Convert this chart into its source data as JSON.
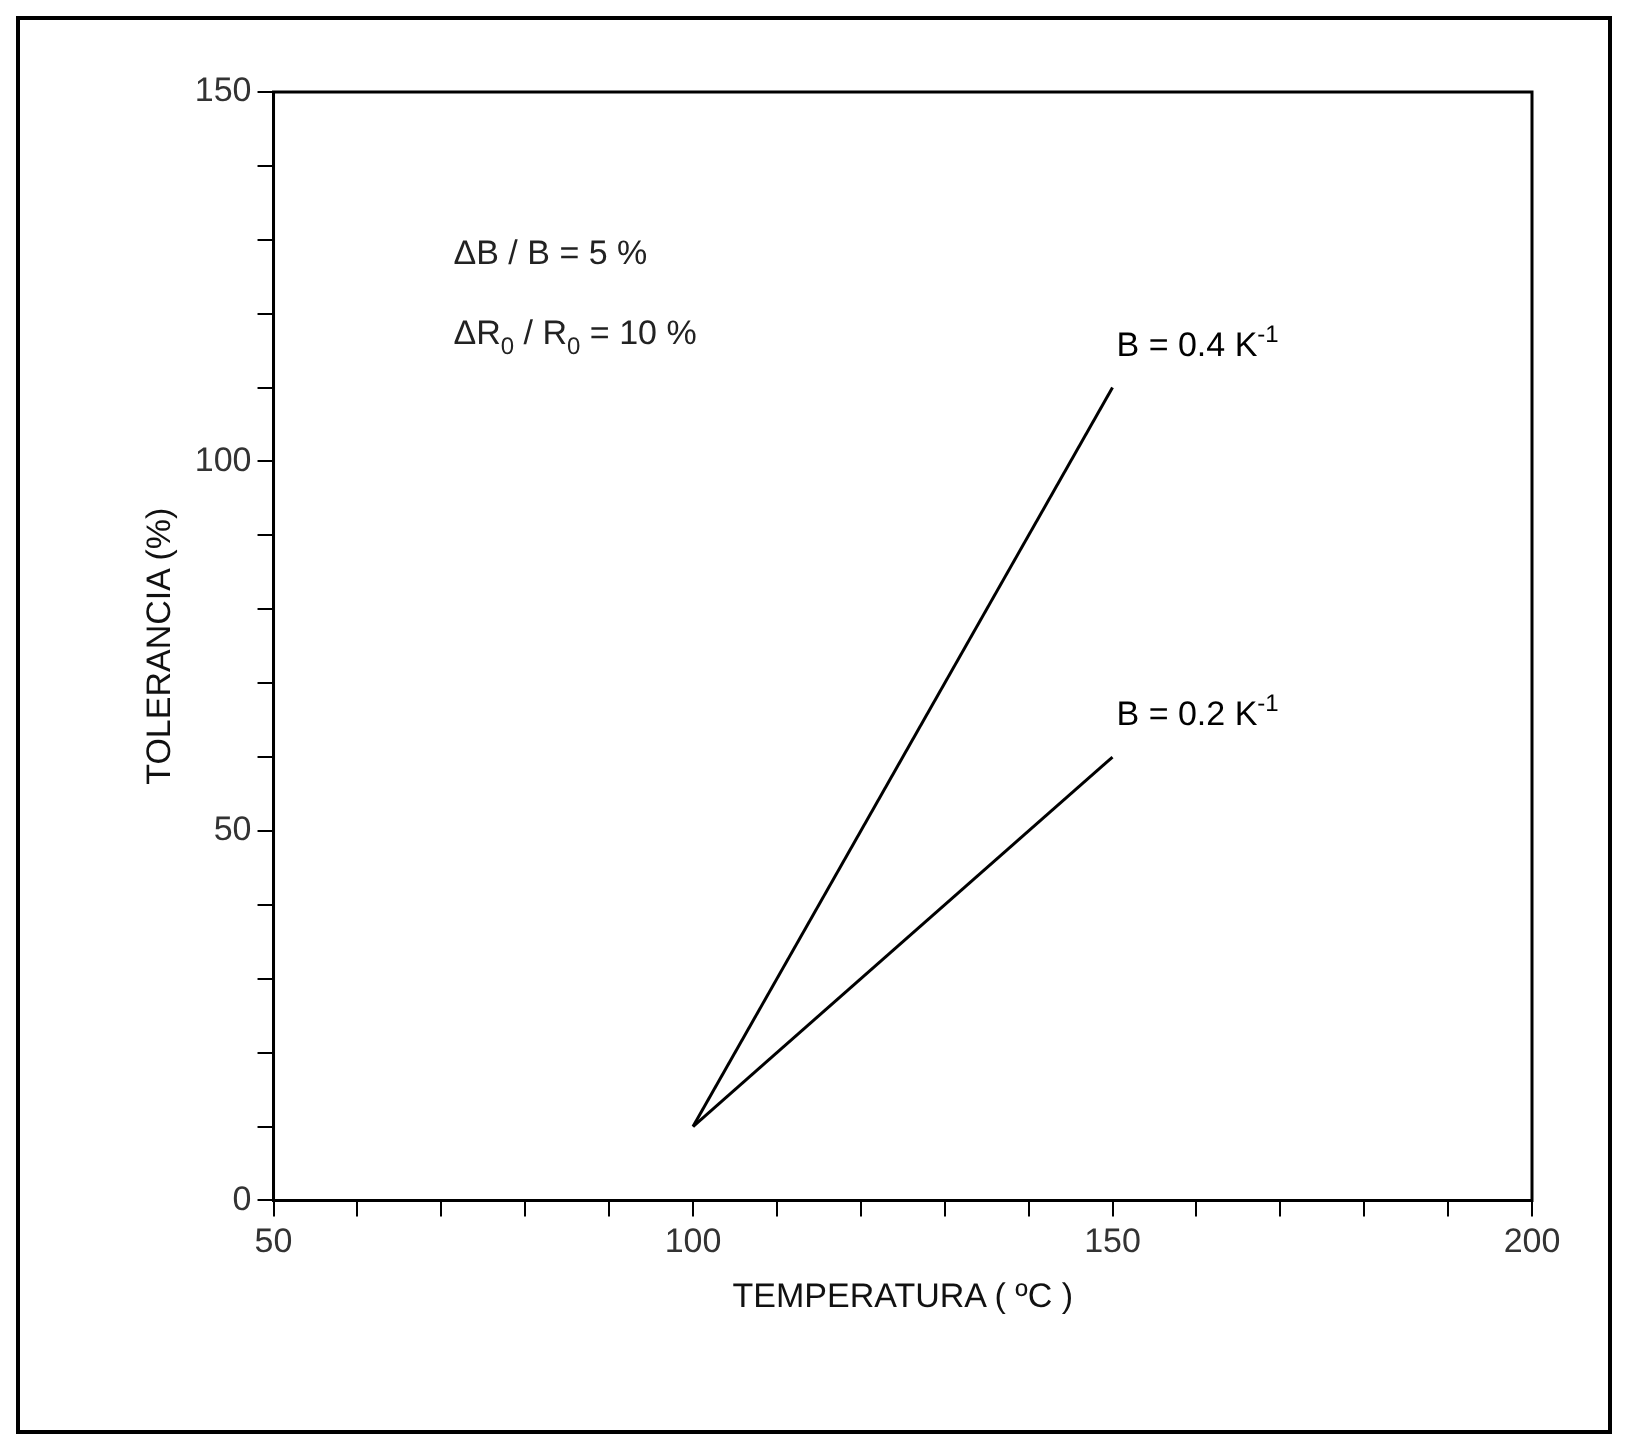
{
  "chart_data": {
    "type": "line",
    "xlabel": "TEMPERATURA ( ºC )",
    "ylabel": "TOLERANCIA (%)",
    "annotations": [
      "ΔB / B = 5 %",
      "ΔR$_{0}$ / R$_{0}$ = 10 %"
    ],
    "x": [
      100,
      150
    ],
    "series": [
      {
        "name": "B = 0.4 K$^{-1}$",
        "color": "#000000",
        "values": [
          10,
          110
        ]
      },
      {
        "name": "B = 0.2 K$^{-1}$",
        "color": "#000000",
        "values": [
          10,
          60
        ]
      }
    ],
    "xlim": [
      50,
      200
    ],
    "xticks": [
      50,
      {
        "value": 60,
        "label": null
      },
      {
        "value": 70,
        "label": null
      },
      {
        "value": 80,
        "label": null
      },
      {
        "value": 90,
        "label": null
      },
      100,
      {
        "value": 110,
        "label": null
      },
      {
        "value": 120,
        "label": null
      },
      {
        "value": 130,
        "label": null
      },
      {
        "value": 140,
        "label": null
      },
      150,
      {
        "value": 160,
        "label": null
      },
      {
        "value": 170,
        "label": null
      },
      {
        "value": 180,
        "label": null
      },
      {
        "value": 190,
        "label": null
      },
      200
    ],
    "ylim": [
      0,
      150
    ],
    "yticks": [
      0,
      {
        "value": 10,
        "label": null
      },
      {
        "value": 20,
        "label": null
      },
      {
        "value": 30,
        "label": null
      },
      {
        "value": 40,
        "label": null
      },
      50,
      {
        "value": 60,
        "label": null
      },
      {
        "value": 70,
        "label": null
      },
      {
        "value": 80,
        "label": null
      },
      {
        "value": 90,
        "label": null
      },
      100,
      {
        "value": 110,
        "label": null
      },
      {
        "value": 120,
        "label": null
      },
      {
        "value": 130,
        "label": null
      },
      {
        "value": 140,
        "label": null
      },
      150
    ],
    "grid": false,
    "marker": "none",
    "line_style": "solid"
  }
}
